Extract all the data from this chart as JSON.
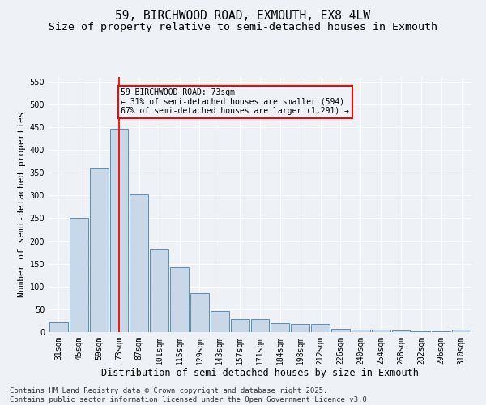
{
  "title": "59, BIRCHWOOD ROAD, EXMOUTH, EX8 4LW",
  "subtitle": "Size of property relative to semi-detached houses in Exmouth",
  "xlabel": "Distribution of semi-detached houses by size in Exmouth",
  "ylabel": "Number of semi-detached properties",
  "categories": [
    "31sqm",
    "45sqm",
    "59sqm",
    "73sqm",
    "87sqm",
    "101sqm",
    "115sqm",
    "129sqm",
    "143sqm",
    "157sqm",
    "171sqm",
    "184sqm",
    "198sqm",
    "212sqm",
    "226sqm",
    "240sqm",
    "254sqm",
    "268sqm",
    "282sqm",
    "296sqm",
    "310sqm"
  ],
  "values": [
    22,
    250,
    360,
    447,
    303,
    181,
    142,
    85,
    46,
    28,
    28,
    20,
    18,
    18,
    8,
    6,
    5,
    3,
    2,
    1,
    5
  ],
  "bar_color": "#c8d8e8",
  "bar_edge_color": "#5b8db8",
  "ylim": [
    0,
    560
  ],
  "yticks": [
    0,
    50,
    100,
    150,
    200,
    250,
    300,
    350,
    400,
    450,
    500,
    550
  ],
  "vline_x": 3,
  "vline_color": "red",
  "annotation_title": "59 BIRCHWOOD ROAD: 73sqm",
  "annotation_line1": "← 31% of semi-detached houses are smaller (594)",
  "annotation_line2": "67% of semi-detached houses are larger (1,291) →",
  "annotation_box_color": "red",
  "footer_line1": "Contains HM Land Registry data © Crown copyright and database right 2025.",
  "footer_line2": "Contains public sector information licensed under the Open Government Licence v3.0.",
  "background_color": "#eef2f6",
  "grid_color": "#ffffff",
  "title_fontsize": 10.5,
  "subtitle_fontsize": 9.5,
  "xlabel_fontsize": 8.5,
  "ylabel_fontsize": 8,
  "tick_fontsize": 7,
  "footer_fontsize": 6.5,
  "ann_fontsize": 7
}
